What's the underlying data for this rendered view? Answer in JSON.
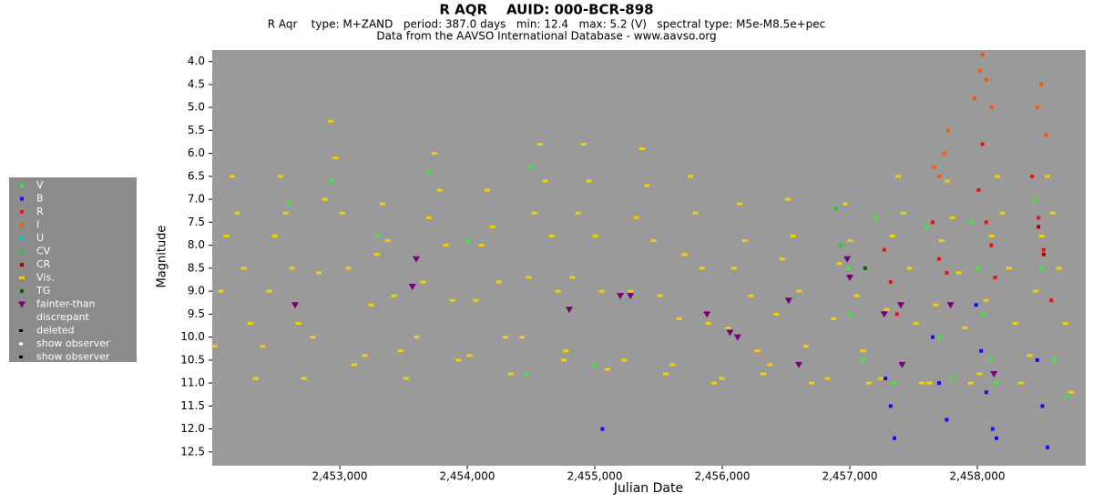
{
  "chart_data": {
    "type": "scatter",
    "title": "R AQR    AUID: 000-BCR-898",
    "subtitle": "R Aqr    type: M+ZAND   period: 387.0 days   min: 12.4   max: 5.2 (V)   spectral type: M5e-M8.5e+pec",
    "source": "Data from the AAVSO International Database - www.aavso.org",
    "x_label": "Julian Date",
    "y_label": "Magnitude",
    "xlim": [
      2452000,
      2458850
    ],
    "ylim": [
      12.8,
      3.75
    ],
    "inverted_y": true,
    "xticks": [
      {
        "value": 2453000,
        "label": "2,453,000"
      },
      {
        "value": 2454000,
        "label": "2,454,000"
      },
      {
        "value": 2455000,
        "label": "2,455,000"
      },
      {
        "value": 2456000,
        "label": "2,456,000"
      },
      {
        "value": 2457000,
        "label": "2,457,000"
      },
      {
        "value": 2458000,
        "label": "2,458,000"
      }
    ],
    "yticks": [
      {
        "value": 4,
        "label": "4.0"
      },
      4.5,
      {
        "value": 5,
        "label": "5.0"
      },
      5.5,
      {
        "value": 6,
        "label": "6.0"
      },
      6.5,
      {
        "value": 7,
        "label": "7.0"
      },
      7.5,
      {
        "value": 8,
        "label": "8.0"
      },
      8.5,
      {
        "value": 9,
        "label": "9.0"
      },
      9.5,
      {
        "value": 10,
        "label": "10.0"
      },
      10.5,
      {
        "value": 11,
        "label": "11.0"
      },
      11.5,
      {
        "value": 12,
        "label": "12.0"
      },
      12.5
    ],
    "series": [
      {
        "name": "V",
        "color": "#33ee33",
        "marker": "square",
        "x": [
          2452600,
          2452930,
          2453300,
          2453700,
          2454000,
          2454500,
          2454460,
          2455000,
          2456990,
          2457000,
          2457100,
          2457200,
          2457350,
          2457600,
          2457700,
          2457800,
          2457950,
          2458000,
          2458050,
          2458100,
          2458150,
          2458450,
          2458500,
          2458600,
          2458700
        ],
        "values": [
          7.1,
          6.6,
          7.8,
          6.4,
          7.9,
          6.3,
          10.8,
          10.6,
          8.5,
          9.5,
          10.5,
          7.4,
          11.0,
          7.6,
          10.0,
          10.9,
          7.5,
          8.5,
          9.5,
          10.5,
          11.0,
          7.0,
          8.5,
          10.5,
          11.3
        ]
      },
      {
        "name": "B",
        "color": "#1010ee",
        "marker": "square",
        "x": [
          2455060,
          2457280,
          2457320,
          2457350,
          2457650,
          2457700,
          2457760,
          2457990,
          2458030,
          2458070,
          2458120,
          2458150,
          2458470,
          2458510,
          2458550
        ],
        "values": [
          12.0,
          10.9,
          11.5,
          12.2,
          10.0,
          11.0,
          11.8,
          9.3,
          10.3,
          11.2,
          12.0,
          12.2,
          10.5,
          11.5,
          12.4
        ]
      },
      {
        "name": "R",
        "color": "#ee1010",
        "marker": "square",
        "x": [
          2457270,
          2457320,
          2457370,
          2457650,
          2457700,
          2457760,
          2458010,
          2458040,
          2458070,
          2458110,
          2458140,
          2458430,
          2458480,
          2458520,
          2458580
        ],
        "values": [
          8.1,
          8.8,
          9.5,
          7.5,
          8.3,
          8.6,
          6.8,
          5.8,
          7.5,
          8.0,
          8.7,
          6.5,
          7.4,
          8.1,
          9.2
        ]
      },
      {
        "name": "I",
        "color": "#ff5500",
        "marker": "square",
        "x": [
          2457660,
          2457700,
          2457740,
          2457770,
          2457980,
          2458020,
          2458040,
          2458070,
          2458110,
          2458470,
          2458500,
          2458540
        ],
        "values": [
          6.3,
          6.5,
          6.0,
          5.5,
          4.8,
          4.2,
          3.85,
          4.4,
          5.0,
          5.0,
          4.5,
          5.6
        ]
      },
      {
        "name": "U",
        "color": "#00cccc",
        "marker": "square",
        "x": [],
        "values": []
      },
      {
        "name": "CV",
        "color": "#22cc22",
        "marker": "square",
        "x": [
          2456890,
          2456930
        ],
        "values": [
          7.2,
          8.0
        ]
      },
      {
        "name": "CR",
        "color": "#aa0000",
        "marker": "square",
        "x": [
          2458480,
          2458520
        ],
        "values": [
          7.6,
          8.2
        ]
      },
      {
        "name": "Vis.",
        "color": "#f5d000",
        "marker": "dash",
        "x": [
          2452017,
          2452067,
          2452112,
          2452157,
          2452197,
          2452247,
          2452297,
          2452342,
          2452396,
          2452446,
          2452491,
          2452536,
          2452576,
          2452626,
          2452676,
          2452721,
          2452789,
          2452839,
          2452884,
          2452929,
          2452969,
          2453019,
          2453069,
          2453114,
          2453196,
          2453246,
          2453291,
          2453336,
          2453376,
          2453426,
          2453476,
          2453521,
          2453603,
          2453653,
          2453698,
          2453743,
          2453783,
          2453833,
          2453883,
          2453928,
          2454017,
          2454067,
          2454112,
          2454157,
          2454197,
          2454247,
          2454297,
          2454342,
          2454431,
          2454481,
          2454526,
          2454571,
          2454611,
          2454661,
          2454711,
          2454756,
          2454774,
          2454824,
          2454869,
          2454914,
          2454954,
          2455004,
          2455054,
          2455099,
          2455231,
          2455281,
          2455326,
          2455371,
          2455411,
          2455461,
          2455511,
          2455556,
          2455610,
          2455660,
          2455705,
          2455750,
          2455790,
          2455840,
          2455890,
          2455935,
          2455996,
          2456046,
          2456091,
          2456136,
          2456176,
          2456226,
          2456276,
          2456321,
          2456374,
          2456424,
          2456469,
          2456514,
          2456554,
          2456604,
          2456654,
          2456699,
          2456824,
          2456874,
          2456919,
          2456964,
          2457004,
          2457054,
          2457104,
          2457149,
          2457239,
          2457289,
          2457334,
          2457379,
          2457419,
          2457469,
          2457519,
          2457564,
          2457624,
          2457674,
          2457719,
          2457764,
          2457804,
          2457854,
          2457904,
          2457949,
          2458017,
          2458067,
          2458112,
          2458157,
          2458197,
          2458247,
          2458297,
          2458342,
          2458410,
          2458460,
          2458505,
          2458550,
          2458590,
          2458640,
          2458690,
          2458735
        ],
        "values": [
          10.2,
          9.0,
          7.8,
          6.5,
          7.3,
          8.5,
          9.7,
          10.9,
          10.2,
          9.0,
          7.8,
          6.5,
          7.3,
          8.5,
          9.7,
          10.9,
          10.0,
          8.6,
          7.0,
          5.3,
          6.1,
          7.3,
          8.5,
          10.6,
          10.4,
          9.3,
          8.2,
          7.1,
          7.9,
          9.1,
          10.3,
          10.9,
          10.0,
          8.8,
          7.4,
          6.0,
          6.8,
          8.0,
          9.2,
          10.5,
          10.4,
          9.2,
          8.0,
          6.8,
          7.6,
          8.8,
          10.0,
          10.8,
          10.0,
          8.7,
          7.3,
          5.8,
          6.6,
          7.8,
          9.0,
          10.5,
          10.3,
          8.7,
          7.3,
          5.8,
          6.6,
          7.8,
          9.0,
          10.7,
          10.5,
          9.0,
          7.4,
          5.9,
          6.7,
          7.9,
          9.1,
          10.8,
          10.6,
          9.6,
          8.2,
          6.5,
          7.3,
          8.5,
          9.7,
          11.0,
          10.9,
          9.8,
          8.5,
          7.1,
          7.9,
          9.1,
          10.3,
          10.8,
          10.6,
          9.5,
          8.3,
          7.0,
          7.8,
          9.0,
          10.2,
          11.0,
          10.9,
          9.6,
          8.4,
          7.1,
          7.9,
          9.1,
          10.3,
          11.0,
          10.9,
          9.4,
          7.8,
          6.5,
          7.3,
          8.5,
          9.7,
          11.0,
          11.0,
          9.3,
          7.9,
          6.6,
          7.4,
          8.6,
          9.8,
          11.0,
          10.8,
          9.2,
          7.8,
          6.5,
          7.3,
          8.5,
          9.7,
          11.0,
          10.4,
          9.0,
          7.8,
          6.5,
          7.3,
          8.5,
          9.7,
          11.2
        ]
      },
      {
        "name": "TG",
        "color": "#006600",
        "marker": "square",
        "x": [
          2457120
        ],
        "values": [
          8.5
        ]
      },
      {
        "name": "fainter-than",
        "color": "#770077",
        "marker": "triangle",
        "x": [
          2452650,
          2453570,
          2453600,
          2454800,
          2455200,
          2455280,
          2455880,
          2456060,
          2456120,
          2456520,
          2456600,
          2456980,
          2457000,
          2457270,
          2457400,
          2457410,
          2457790,
          2458130
        ],
        "values": [
          9.3,
          8.9,
          8.3,
          9.4,
          9.1,
          9.1,
          9.5,
          9.9,
          10.0,
          9.2,
          10.6,
          8.3,
          8.7,
          9.5,
          9.3,
          10.6,
          9.3,
          10.8
        ]
      }
    ],
    "legend_extra": [
      "discrepant",
      "deleted",
      "show observer",
      "show observer"
    ]
  }
}
